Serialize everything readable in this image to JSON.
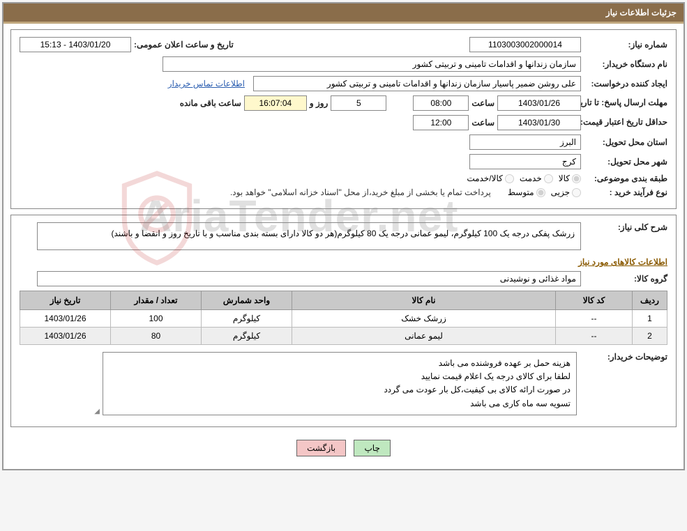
{
  "header": {
    "title": "جزئیات اطلاعات نیاز"
  },
  "need": {
    "number_label": "شماره نیاز:",
    "number": "1103003002000014",
    "announce_label": "تاریخ و ساعت اعلان عمومی:",
    "announce": "1403/01/20 - 15:13",
    "buyer_label": "نام دستگاه خریدار:",
    "buyer": "سازمان زندانها و اقدامات تامینی و تربیتی کشور",
    "requester_label": "ایجاد کننده درخواست:",
    "requester": "علی روشن ضمیر پاسیار سازمان زندانها و اقدامات تامینی و تربیتی کشور",
    "contact_link": "اطلاعات تماس خریدار",
    "deadline_label": "مهلت ارسال پاسخ:",
    "until": "تا تاریخ:",
    "deadline_date": "1403/01/26",
    "hour_label": "ساعت",
    "deadline_time": "08:00",
    "days": "5",
    "days_label": "روز و",
    "countdown": "16:07:04",
    "remaining_label": "ساعت باقی مانده",
    "validity_label": "حداقل تاریخ اعتبار قیمت:",
    "validity_date": "1403/01/30",
    "validity_time": "12:00",
    "province_label": "استان محل تحویل:",
    "province": "البرز",
    "city_label": "شهر محل تحویل:",
    "city": "کرج",
    "category_label": "طبقه بندی موضوعی:",
    "category_opts": {
      "goods": "کالا",
      "service": "خدمت",
      "both": "کالا/خدمت"
    },
    "process_label": "نوع فرآیند خرید :",
    "process_opts": {
      "small": "جزیی",
      "medium": "متوسط"
    },
    "process_note": "پرداخت تمام یا بخشی از مبلغ خرید،از محل \"اسناد خزانه اسلامی\" خواهد بود."
  },
  "detail": {
    "overall_label": "شرح کلی نیاز:",
    "overall": "زرشک پفکی درجه یک 100 کیلوگرم، لیمو عمانی درجه یک 80 کیلوگرم(هر دو کالا دارای بسته بندی مناسب و با تاریخ روز و انقضا و باشند)",
    "items_header": "اطلاعات کالاهای مورد نیاز",
    "group_label": "گروه کالا:",
    "group": "مواد غذائی و نوشیدنی",
    "table": {
      "headers": [
        "ردیف",
        "کد کالا",
        "نام کالا",
        "واحد شمارش",
        "تعداد / مقدار",
        "تاریخ نیاز"
      ],
      "rows": [
        [
          "1",
          "--",
          "زرشک خشک",
          "کیلوگرم",
          "100",
          "1403/01/26"
        ],
        [
          "2",
          "--",
          "لیمو عمانی",
          "کیلوگرم",
          "80",
          "1403/01/26"
        ]
      ],
      "col_widths": [
        "50px",
        "110px",
        "auto",
        "130px",
        "130px",
        "130px"
      ]
    },
    "buyer_note_label": "توضیحات خریدار:",
    "buyer_note": "هزینه حمل بر عهده فروشنده می باشد\nلطفا برای کالای درجه یک اعلام قیمت نمایید\nدر صورت ارائه کالای بی کیفیت،کل بار عودت می گردد\nتسویه سه ماه کاری می باشد"
  },
  "buttons": {
    "print": "چاپ",
    "back": "بازگشت"
  },
  "watermark": "AriaTender.net",
  "colors": {
    "header_bg": "#8a6d4a",
    "header_border": "#c0a77d",
    "accent": "#8a5a00",
    "link": "#2a5db0",
    "countdown_bg": "#fff8cc",
    "th_bg": "#c9c9c9",
    "btn_print": "#bfe8bf",
    "btn_back": "#f4c6c6",
    "border": "#888",
    "shield_stroke": "#c03030"
  }
}
